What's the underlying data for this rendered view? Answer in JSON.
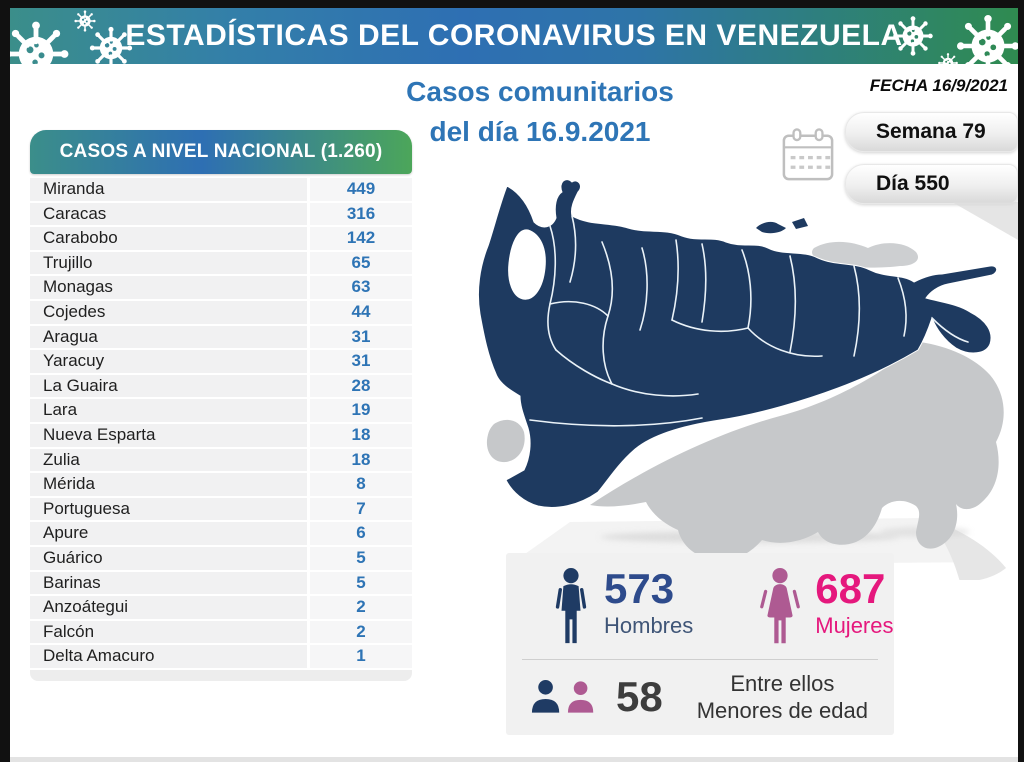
{
  "header": {
    "banner_title": "ESTADÍSTICAS DEL CORONAVIRUS EN VENEZUELA",
    "date_label": "FECHA 16/9/2021"
  },
  "title": {
    "line1": "Casos comunitarios",
    "line2": "del día 16.9.2021"
  },
  "badges": {
    "week": "Semana 79",
    "day": "Día 550"
  },
  "cases_table": {
    "header": "CASOS A NIVEL NACIONAL (1.260)",
    "rows": [
      {
        "state": "Miranda",
        "value": "449"
      },
      {
        "state": "Caracas",
        "value": "316"
      },
      {
        "state": "Carabobo",
        "value": "142"
      },
      {
        "state": "Trujillo",
        "value": "65"
      },
      {
        "state": "Monagas",
        "value": "63"
      },
      {
        "state": "Cojedes",
        "value": "44"
      },
      {
        "state": "Aragua",
        "value": "31"
      },
      {
        "state": "Yaracuy",
        "value": "31"
      },
      {
        "state": "La Guaira",
        "value": "28"
      },
      {
        "state": "Lara",
        "value": "19"
      },
      {
        "state": "Nueva Esparta",
        "value": "18"
      },
      {
        "state": "Zulia",
        "value": "18"
      },
      {
        "state": "Mérida",
        "value": "8"
      },
      {
        "state": "Portuguesa",
        "value": "7"
      },
      {
        "state": "Apure",
        "value": "6"
      },
      {
        "state": "Guárico",
        "value": "5"
      },
      {
        "state": "Barinas",
        "value": "5"
      },
      {
        "state": "Anzoátegui",
        "value": "2"
      },
      {
        "state": "Falcón",
        "value": "2"
      },
      {
        "state": "Delta Amacuro",
        "value": "1"
      }
    ]
  },
  "stats": {
    "men_value": "573",
    "men_label": "Hombres",
    "women_value": "687",
    "women_label": "Mujeres",
    "minors_value": "58",
    "minors_line1": "Entre ellos",
    "minors_line2": "Menores de edad"
  },
  "icons": {
    "virus": "virus-icon",
    "calendar": "calendar-icon",
    "male": "male-person-icon",
    "female": "female-person-icon",
    "children": "children-icon"
  },
  "colors": {
    "banner_teal": "#3B8E8A",
    "banner_blue": "#2E6FB3",
    "banner_green": "#2F8B50",
    "title_blue": "#2E75B6",
    "value_blue": "#2E74B5",
    "map_navy": "#1E3A60",
    "map_gray": "#C6C8CA",
    "men_navy": "#2E4B8C",
    "men_label": "#3F5577",
    "women_pink": "#E5187D",
    "women_mauve": "#AE5A92",
    "minors_gray": "#3D3D3D"
  },
  "chart_data": {
    "type": "table",
    "title": "CASOS A NIVEL NACIONAL (1.260)",
    "subtitle": "Casos comunitarios del día 16.9.2021",
    "total": 1260,
    "date": "16/9/2021",
    "week": 79,
    "day": 550,
    "categories": [
      "Miranda",
      "Caracas",
      "Carabobo",
      "Trujillo",
      "Monagas",
      "Cojedes",
      "Aragua",
      "Yaracuy",
      "La Guaira",
      "Lara",
      "Nueva Esparta",
      "Zulia",
      "Mérida",
      "Portuguesa",
      "Apure",
      "Guárico",
      "Barinas",
      "Anzoátegui",
      "Falcón",
      "Delta Amacuro"
    ],
    "values": [
      449,
      316,
      142,
      65,
      63,
      44,
      31,
      31,
      28,
      19,
      18,
      18,
      8,
      7,
      6,
      5,
      5,
      2,
      2,
      1
    ],
    "demographics": {
      "hombres": 573,
      "mujeres": 687,
      "menores_de_edad": 58
    }
  }
}
